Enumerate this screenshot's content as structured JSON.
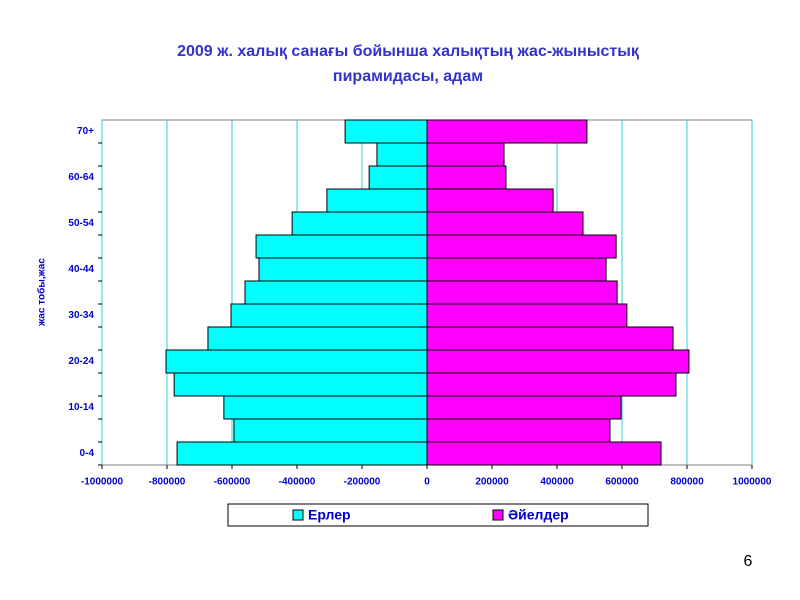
{
  "chart_data": {
    "type": "pyramid",
    "title": [
      "2009 ж. халық санағы бойынша халықтың жас-жыныстық",
      "пирамидасы, адам"
    ],
    "y_label": "жас тобы,жас",
    "categories": [
      "0-4",
      null,
      "10-14",
      null,
      "20-24",
      null,
      "30-34",
      null,
      "40-44",
      null,
      "50-54",
      null,
      "60-64",
      null,
      "70+"
    ],
    "series": [
      {
        "name": "Ерлер",
        "color": "#00ffff",
        "values": [
          -769000,
          -594000,
          -625000,
          -778000,
          -803000,
          -674000,
          -603000,
          -560000,
          -517000,
          -526000,
          -415000,
          -308000,
          -178000,
          -154000,
          -252000
        ]
      },
      {
        "name": "Әйелдер",
        "color": "#ff00ff",
        "values": [
          720000,
          563000,
          597000,
          766000,
          806000,
          757000,
          615000,
          585000,
          551000,
          582000,
          480000,
          388000,
          243000,
          237000,
          492000
        ]
      }
    ],
    "xlim": [
      -1000000,
      1000000
    ],
    "xticks": [
      -1000000,
      -800000,
      -600000,
      -400000,
      -200000,
      0,
      200000,
      400000,
      600000,
      800000,
      1000000
    ],
    "grid": true,
    "page_number": "6"
  }
}
